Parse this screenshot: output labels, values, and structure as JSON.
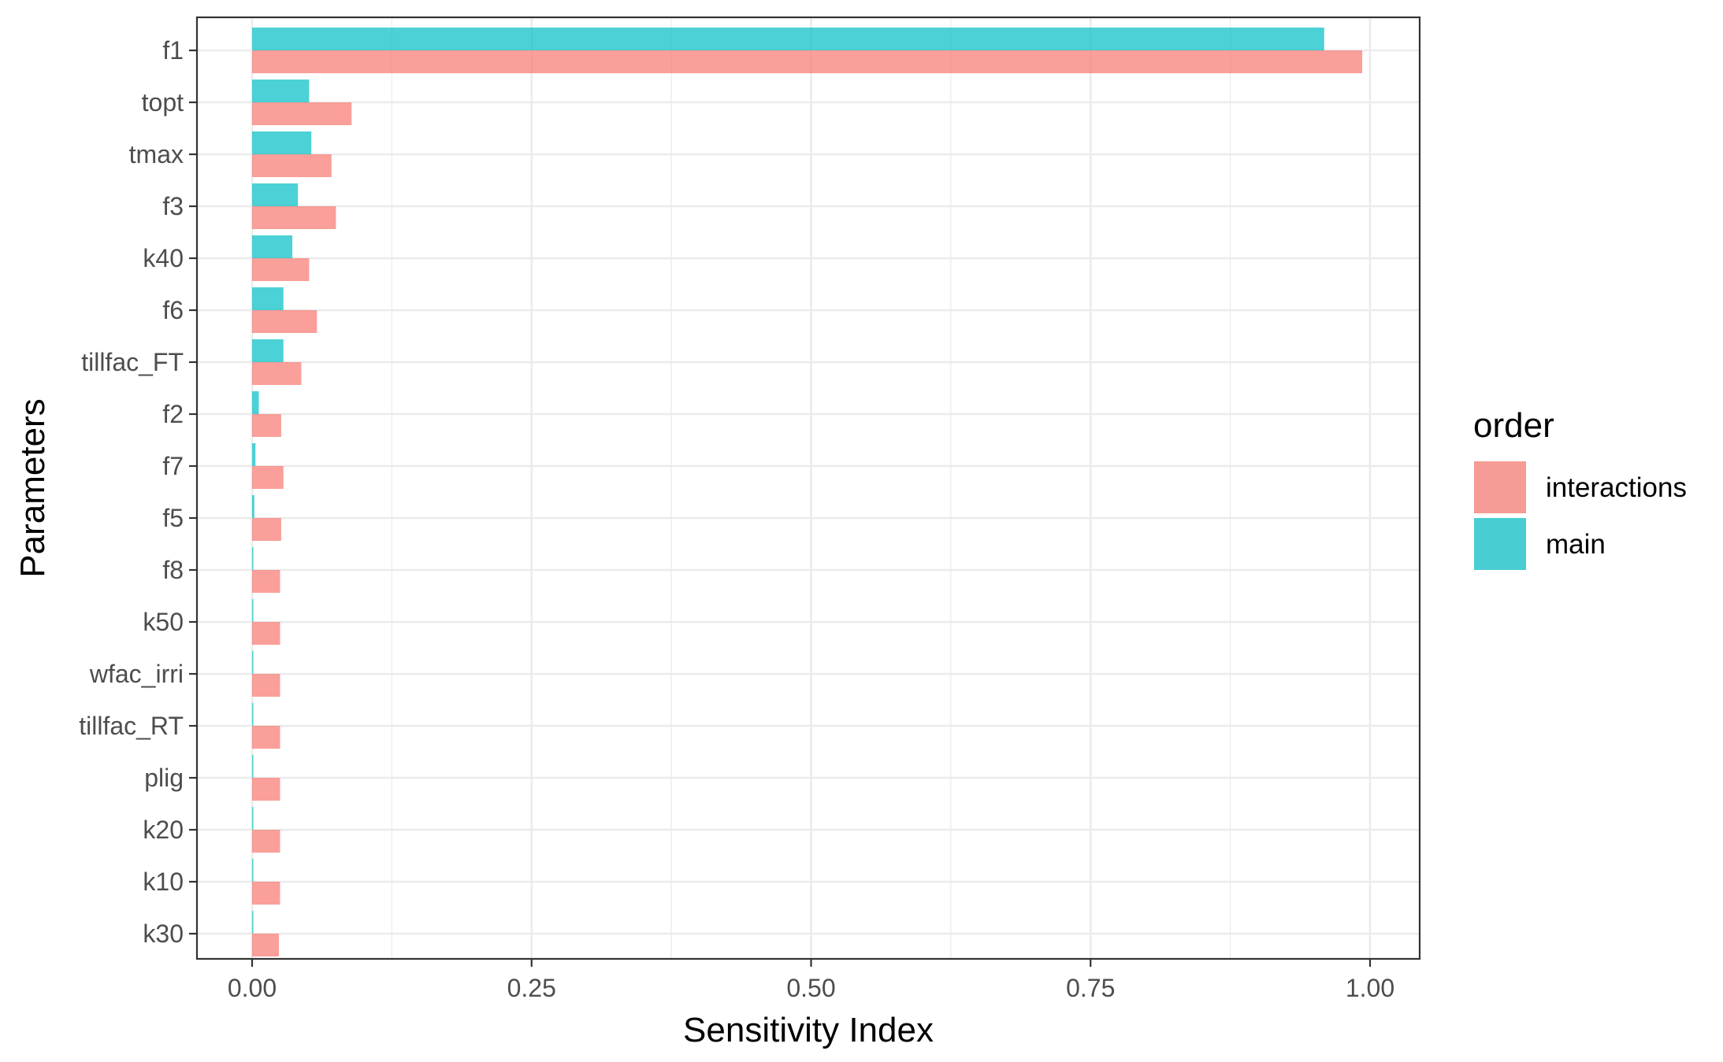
{
  "chart_data": {
    "type": "bar",
    "orientation": "horizontal",
    "xlabel": "Sensitivity Index",
    "ylabel": "Parameters",
    "xlim": [
      -0.05,
      1.045
    ],
    "x_ticks": [
      "0.00",
      "0.25",
      "0.50",
      "0.75",
      "1.00"
    ],
    "x_tick_values": [
      0,
      0.25,
      0.5,
      0.75,
      1.0
    ],
    "grid": true,
    "legend_title": "order",
    "legend_position": "right",
    "categories": [
      "f1",
      "topt",
      "tmax",
      "f3",
      "k40",
      "f6",
      "tillfac_FT",
      "f2",
      "f7",
      "f5",
      "f8",
      "k50",
      "wfac_irri",
      "tillfac_RT",
      "plig",
      "k20",
      "k10",
      "k30"
    ],
    "series": [
      {
        "name": "interactions",
        "color": "#F8766D",
        "values": [
          0.993,
          0.089,
          0.071,
          0.075,
          0.051,
          0.058,
          0.044,
          0.026,
          0.028,
          0.026,
          0.025,
          0.025,
          0.025,
          0.025,
          0.025,
          0.025,
          0.025,
          0.024
        ]
      },
      {
        "name": "main",
        "color": "#00BFC4",
        "values": [
          0.959,
          0.051,
          0.053,
          0.041,
          0.036,
          0.028,
          0.028,
          0.006,
          0.003,
          0.002,
          0.001,
          0.001,
          0.001,
          0.001,
          0.001,
          0.001,
          0.001,
          0.001
        ]
      }
    ]
  }
}
